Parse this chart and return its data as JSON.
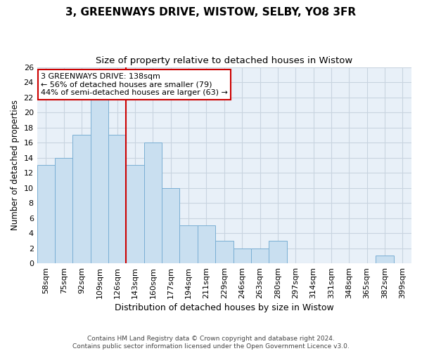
{
  "title": "3, GREENWAYS DRIVE, WISTOW, SELBY, YO8 3FR",
  "subtitle": "Size of property relative to detached houses in Wistow",
  "xlabel": "Distribution of detached houses by size in Wistow",
  "ylabel": "Number of detached properties",
  "categories": [
    "58sqm",
    "75sqm",
    "92sqm",
    "109sqm",
    "126sqm",
    "143sqm",
    "160sqm",
    "177sqm",
    "194sqm",
    "211sqm",
    "229sqm",
    "246sqm",
    "263sqm",
    "280sqm",
    "297sqm",
    "314sqm",
    "331sqm",
    "348sqm",
    "365sqm",
    "382sqm",
    "399sqm"
  ],
  "values": [
    13,
    14,
    17,
    22,
    17,
    13,
    16,
    10,
    5,
    5,
    3,
    2,
    2,
    3,
    0,
    0,
    0,
    0,
    0,
    1,
    0
  ],
  "bar_color": "#c9dff0",
  "bar_edge_color": "#7aafd4",
  "grid_color": "#c8d4e0",
  "background_color": "#ffffff",
  "plot_bg_color": "#e8f0f8",
  "vline_x": 5,
  "vline_color": "#cc0000",
  "annotation_line1": "3 GREENWAYS DRIVE: 138sqm",
  "annotation_line2": "← 56% of detached houses are smaller (79)",
  "annotation_line3": "44% of semi-detached houses are larger (63) →",
  "annotation_box_color": "white",
  "annotation_box_edge_color": "#cc0000",
  "ylim": [
    0,
    26
  ],
  "yticks": [
    0,
    2,
    4,
    6,
    8,
    10,
    12,
    14,
    16,
    18,
    20,
    22,
    24,
    26
  ],
  "footer": "Contains HM Land Registry data © Crown copyright and database right 2024.\nContains public sector information licensed under the Open Government Licence v3.0.",
  "title_fontsize": 11,
  "subtitle_fontsize": 9.5,
  "xlabel_fontsize": 9,
  "ylabel_fontsize": 8.5,
  "tick_fontsize": 8,
  "annotation_fontsize": 8,
  "footer_fontsize": 6.5
}
